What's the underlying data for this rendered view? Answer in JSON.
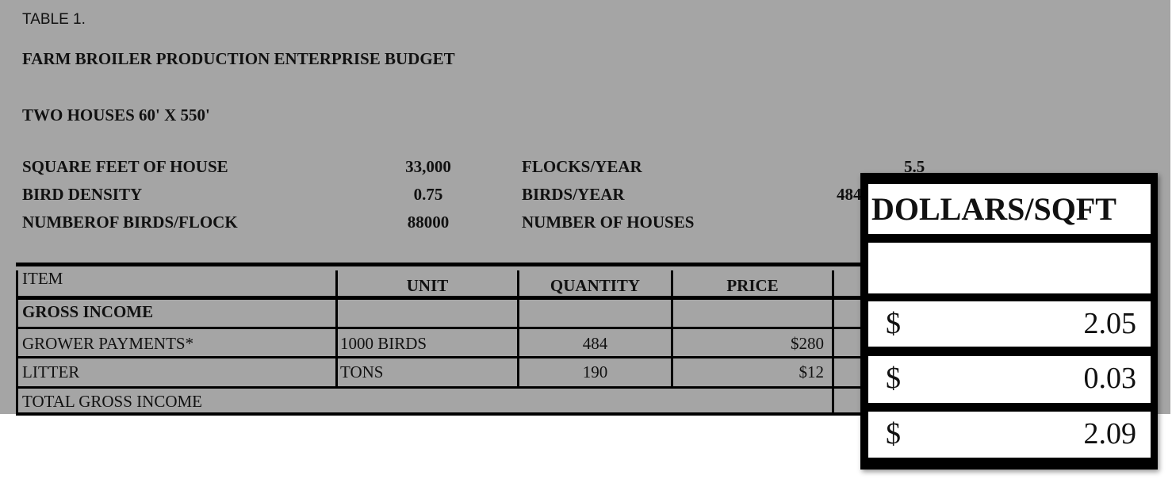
{
  "table_label": "TABLE 1.",
  "title": "FARM BROILER PRODUCTION ENTERPRISE BUDGET",
  "subtitle": "TWO HOUSES 60' X 550'",
  "params": [
    {
      "label": "SQUARE FEET OF HOUSE",
      "value": "33,000",
      "label2": "FLOCKS/YEAR",
      "value2": "5.5"
    },
    {
      "label": "BIRD DENSITY",
      "value": "0.75",
      "label2": "BIRDS/YEAR",
      "value2": "484"
    },
    {
      "label": "NUMBEROF BIRDS/FLOCK",
      "value": "88000",
      "label2": "NUMBER OF HOUSES",
      "value2": ""
    }
  ],
  "table": {
    "headers": [
      "ITEM",
      "UNIT",
      "QUANTITY",
      "PRICE"
    ],
    "rows": [
      {
        "item": "GROSS INCOME",
        "unit": "",
        "quantity": "",
        "price": ""
      },
      {
        "item": "GROWER PAYMENTS*",
        "unit": "1000 BIRDS",
        "quantity": "484",
        "price": "$280"
      },
      {
        "item": "LITTER",
        "unit": "TONS",
        "quantity": "190",
        "price": "$12"
      },
      {
        "item": "TOTAL GROSS INCOME",
        "unit": "",
        "quantity": "",
        "price": ""
      }
    ]
  },
  "callout": {
    "header": "DOLLARS/SQFT",
    "rows": [
      {
        "currency": "$",
        "value": "2.05"
      },
      {
        "currency": "$",
        "value": "0.03"
      },
      {
        "currency": "$",
        "value": "2.09"
      }
    ]
  }
}
